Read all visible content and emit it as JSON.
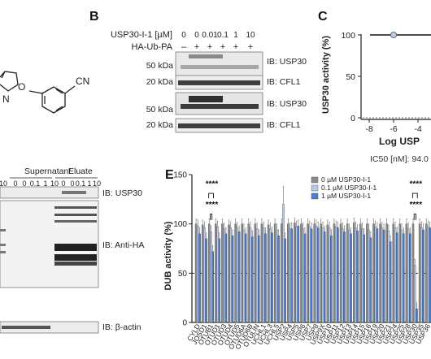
{
  "panels": {
    "b": {
      "letter": "B",
      "treatment_label": "USP30-I-1 [µM]",
      "treatment_values": [
        "0",
        "0",
        "0.01",
        "0.1",
        "1",
        "10"
      ],
      "probe_label": "HA-Ub-PA",
      "probe_signs": [
        "–",
        "+",
        "+",
        "+",
        "+",
        "+"
      ],
      "blots": [
        {
          "marker": "50 kDa",
          "ib": "IB: USP30"
        },
        {
          "marker": "20 kDa",
          "ib": "IB: CFL1"
        },
        {
          "marker": "50 kDa",
          "ib": "IB: USP30"
        },
        {
          "marker": "20 kDa",
          "ib": "IB: CFL1"
        }
      ]
    },
    "c": {
      "letter": "C",
      "ylabel": "USP30 activity (%)",
      "xlabel": "Log USP",
      "yticks": [
        "0",
        "50",
        "100"
      ],
      "xticks": [
        "-8",
        "-6",
        "-4"
      ],
      "ic50": "IC50 [nM]: 94.0 ("
    },
    "d": {
      "group_supernatant": "Supernatant",
      "group_eluate": "Eluate",
      "lane_values": [
        "10",
        "0",
        "0",
        "0.1",
        "1",
        "10",
        "0",
        "0",
        "0.1",
        "1",
        "10"
      ],
      "lane_signs": [
        "+",
        "–",
        "+",
        "+",
        "+",
        "+",
        "–",
        "+",
        "+",
        "+",
        "+"
      ],
      "ib_labels": [
        "IB: USP30",
        "IB: Anti-HA",
        "IB: β-actin"
      ]
    },
    "a": {
      "substituent": "CN"
    }
  },
  "chart_data": {
    "type": "bar",
    "panel": "E",
    "title": "",
    "xlabel": "",
    "ylabel": "DUB activity (%)",
    "ylim": [
      0,
      150
    ],
    "yticks": [
      0,
      50,
      100,
      150
    ],
    "grid": false,
    "reference_line": 50,
    "legend_position": "top-right",
    "colors": [
      "#8c8c8c",
      "#b9c9e6",
      "#4a7fd6"
    ],
    "categories": [
      "CYLD",
      "JOSD1",
      "OTUB1",
      "OTUD1",
      "OTUD3",
      "OTUD4",
      "OTUD5",
      "OTUD6A",
      "OTUD6B",
      "OTULIN",
      "UCHL1",
      "UCHL3",
      "UCHL5",
      "USP2",
      "USP4",
      "USP5",
      "USP6",
      "USP7",
      "USP8",
      "USP9X",
      "USP10",
      "USP11",
      "USP12",
      "USP13",
      "USP14",
      "USP15",
      "USP16",
      "USP19",
      "USP20",
      "USP21",
      "USP24",
      "USP25",
      "USP28",
      "USP30",
      "USP35",
      "USP36"
    ],
    "series": [
      {
        "name": "0 µM USP30-I-1",
        "values": [
          100,
          99,
          100,
          100,
          100,
          99,
          100,
          100,
          100,
          100,
          100,
          99,
          100,
          100,
          100,
          101,
          100,
          100,
          100,
          100,
          99,
          100,
          100,
          100,
          101,
          100,
          100,
          100,
          100,
          100,
          100,
          100,
          100,
          100,
          100,
          100
        ]
      },
      {
        "name": "0.1 µM USP30-I-1",
        "values": [
          98,
          96,
          92,
          97,
          95,
          96,
          96,
          94,
          96,
          95,
          96,
          95,
          94,
          120,
          95,
          97,
          95,
          97,
          98,
          96,
          96,
          97,
          95,
          94,
          96,
          95,
          94,
          97,
          96,
          93,
          96,
          94,
          95,
          58,
          96,
          97
        ]
      },
      {
        "name": "1 µM USP30-I-1",
        "values": [
          90,
          85,
          72,
          85,
          90,
          88,
          92,
          90,
          87,
          88,
          90,
          91,
          88,
          85,
          95,
          98,
          90,
          95,
          96,
          92,
          88,
          96,
          92,
          90,
          93,
          89,
          86,
          95,
          94,
          82,
          91,
          90,
          90,
          14,
          94,
          96
        ]
      }
    ],
    "significance": [
      {
        "category": "OTUB1",
        "marks": [
          "****",
          "****"
        ]
      },
      {
        "category": "USP30",
        "marks": [
          "****",
          "****"
        ]
      }
    ]
  }
}
